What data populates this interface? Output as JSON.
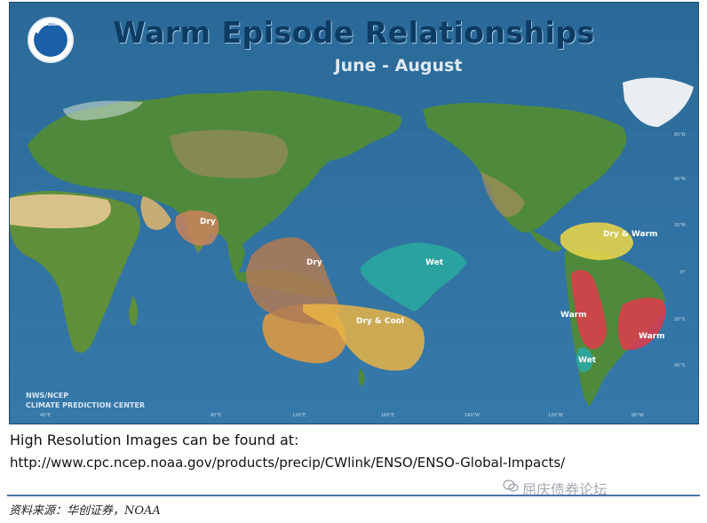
{
  "map": {
    "title": "Warm Episode Relationships",
    "subtitle": "June - August",
    "logo_text": "NOAA",
    "credit_line1": "NWS/NCEP",
    "credit_line2": "CLIMATE PREDICTION CENTER",
    "regions": [
      {
        "id": "india",
        "label": "Dry",
        "color": "#c9835a"
      },
      {
        "id": "indonesia",
        "label": "Dry",
        "color": "#c9835a"
      },
      {
        "id": "central-pacific",
        "label": "Wet",
        "color": "#2aa7a0"
      },
      {
        "id": "east-australia",
        "label": "Dry & Cool",
        "color": "#e8b445"
      },
      {
        "id": "central-america",
        "label": "Dry & Warm",
        "color": "#e6d24a"
      },
      {
        "id": "west-south-america",
        "label": "Warm",
        "color": "#e03a4a"
      },
      {
        "id": "east-south-america",
        "label": "Warm",
        "color": "#e03a4a"
      },
      {
        "id": "chile",
        "label": "Wet",
        "color": "#2aa7a0"
      }
    ],
    "lat_ticks": [
      "60°N",
      "40°N",
      "20°N",
      "0°",
      "20°S",
      "40°S"
    ],
    "lon_ticks": [
      "40°E",
      "80°E",
      "120°E",
      "160°E",
      "160°W",
      "120°W",
      "80°W"
    ]
  },
  "caption": {
    "line1": "High Resolution Images can be found at:",
    "line2": "http://www.cpc.ncep.noaa.gov/products/precip/CWlink/ENSO/ENSO-Global-Impacts/"
  },
  "footer": {
    "source": "资料来源：华创证券，NOAA",
    "watermark": "屈庆债券论坛"
  }
}
